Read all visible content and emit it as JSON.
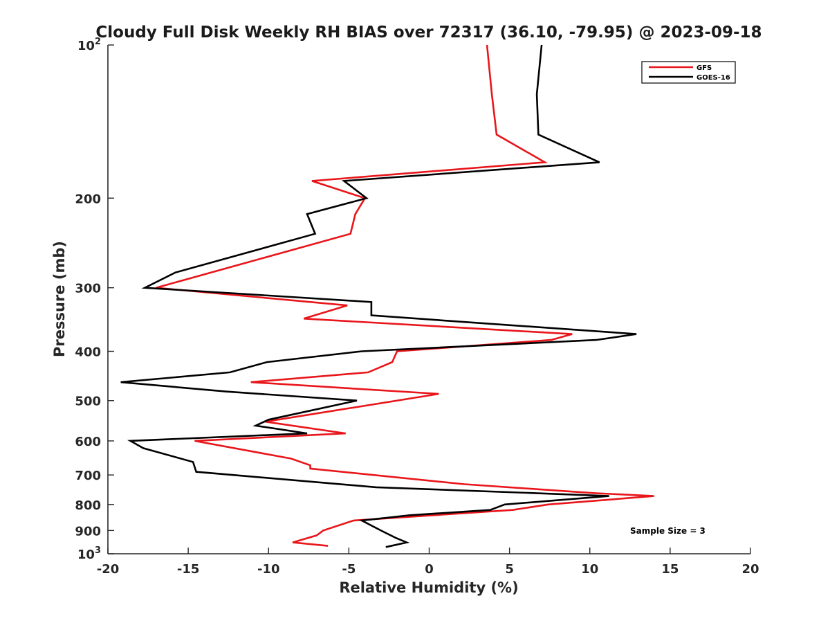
{
  "chart_data": {
    "type": "line",
    "title": "Cloudy Full Disk Weekly RH BIAS over 72317 (36.10, -79.95) @ 2023-09-18",
    "xlabel": "Relative Humidity (%)",
    "ylabel": "Pressure (mb)",
    "xlim": [
      -20,
      20
    ],
    "ylim": [
      100,
      1000
    ],
    "y_scale": "log",
    "y_reversed": true,
    "x_ticks": [
      -20,
      -15,
      -10,
      -5,
      0,
      5,
      10,
      15,
      20
    ],
    "x_tick_labels": [
      "-20",
      "-15",
      "-10",
      "-5",
      "0",
      "5",
      "10",
      "15",
      "20"
    ],
    "y_ticks": [
      {
        "value": 100,
        "base": "10",
        "exp": "2"
      },
      {
        "value": 200,
        "label": "200"
      },
      {
        "value": 300,
        "label": "300"
      },
      {
        "value": 400,
        "label": "400"
      },
      {
        "value": 500,
        "label": "500"
      },
      {
        "value": 600,
        "label": "600"
      },
      {
        "value": 700,
        "label": "700"
      },
      {
        "value": 800,
        "label": "800"
      },
      {
        "value": 900,
        "label": "900"
      },
      {
        "value": 1000,
        "base": "10",
        "exp": "3"
      }
    ],
    "grid": false,
    "legend_position": "top-right",
    "annotation": "Sample Size = 3",
    "series": [
      {
        "name": "GFS",
        "color": "#e8161b",
        "points": [
          [
            3.6,
            100
          ],
          [
            3.9,
            125
          ],
          [
            4.2,
            150
          ],
          [
            7.2,
            170
          ],
          [
            -7.3,
            185
          ],
          [
            -4.0,
            200
          ],
          [
            -4.6,
            215
          ],
          [
            -4.9,
            235
          ],
          [
            -17.0,
            300
          ],
          [
            -5.1,
            325
          ],
          [
            -7.8,
            345
          ],
          [
            8.9,
            370
          ],
          [
            7.6,
            380
          ],
          [
            -2.0,
            400
          ],
          [
            -2.3,
            420
          ],
          [
            -3.8,
            440
          ],
          [
            -11.1,
            460
          ],
          [
            0.6,
            485
          ],
          [
            -10.2,
            550
          ],
          [
            -5.2,
            580
          ],
          [
            -14.6,
            600
          ],
          [
            -8.6,
            650
          ],
          [
            -7.4,
            670
          ],
          [
            -7.4,
            680
          ],
          [
            2.2,
            730
          ],
          [
            10.3,
            760
          ],
          [
            14.0,
            770
          ],
          [
            7.4,
            800
          ],
          [
            5.2,
            820
          ],
          [
            -4.7,
            860
          ],
          [
            -6.6,
            900
          ],
          [
            -7.0,
            920
          ],
          [
            -8.5,
            950
          ],
          [
            -6.3,
            965
          ]
        ]
      },
      {
        "name": "GOES-16",
        "color": "#000000",
        "points": [
          [
            7.0,
            100
          ],
          [
            6.7,
            125
          ],
          [
            6.8,
            150
          ],
          [
            10.6,
            170
          ],
          [
            -5.3,
            185
          ],
          [
            -3.9,
            200
          ],
          [
            -7.6,
            215
          ],
          [
            -7.1,
            235
          ],
          [
            -15.8,
            280
          ],
          [
            -17.7,
            300
          ],
          [
            -3.6,
            320
          ],
          [
            -3.6,
            340
          ],
          [
            12.9,
            370
          ],
          [
            10.4,
            380
          ],
          [
            -4.2,
            400
          ],
          [
            -10.1,
            420
          ],
          [
            -12.4,
            440
          ],
          [
            -19.2,
            460
          ],
          [
            -12.6,
            480
          ],
          [
            -4.5,
            500
          ],
          [
            -10.0,
            545
          ],
          [
            -10.8,
            560
          ],
          [
            -7.6,
            580
          ],
          [
            -18.6,
            600
          ],
          [
            -17.8,
            620
          ],
          [
            -14.7,
            660
          ],
          [
            -14.5,
            690
          ],
          [
            -3.3,
            740
          ],
          [
            6.6,
            760
          ],
          [
            11.2,
            770
          ],
          [
            4.7,
            800
          ],
          [
            3.8,
            820
          ],
          [
            -1.2,
            840
          ],
          [
            -4.2,
            860
          ],
          [
            -3.0,
            900
          ],
          [
            -2.1,
            930
          ],
          [
            -1.4,
            950
          ],
          [
            -2.7,
            970
          ]
        ]
      }
    ]
  }
}
